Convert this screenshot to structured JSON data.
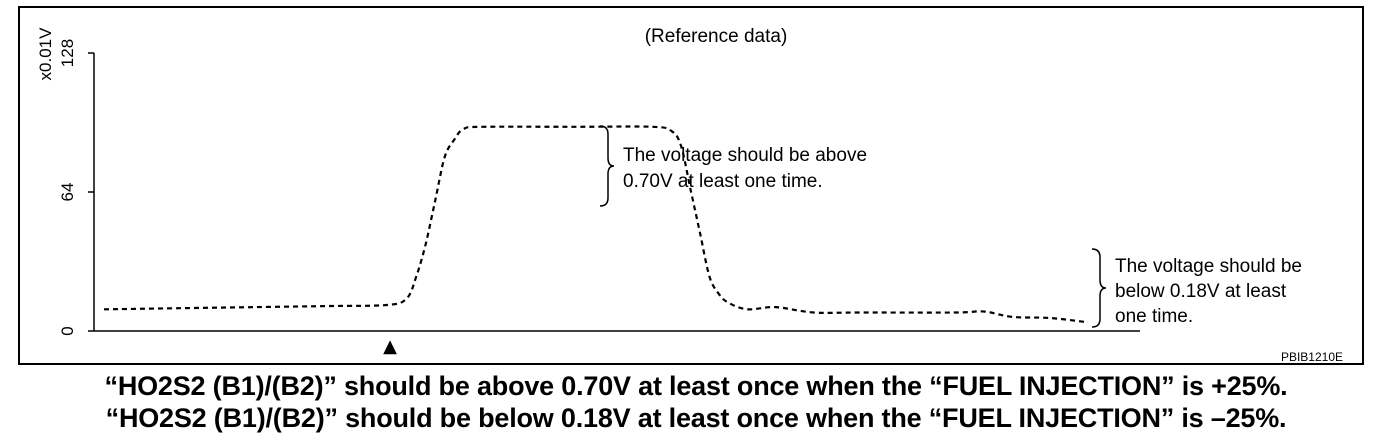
{
  "chart_data": {
    "type": "line",
    "title": "(Reference data)",
    "ylabel": "x0.01V",
    "yticks": [
      0,
      64,
      128
    ],
    "ylim": [
      0,
      128
    ],
    "grid": false,
    "line_style": "dashed",
    "series": [
      {
        "points": [
          [
            0,
            10
          ],
          [
            8,
            10.5
          ],
          [
            16,
            11
          ],
          [
            24,
            11.5
          ],
          [
            30,
            12
          ],
          [
            32,
            15
          ],
          [
            33,
            25
          ],
          [
            34,
            40
          ],
          [
            35,
            60
          ],
          [
            36,
            80
          ],
          [
            37,
            88
          ],
          [
            38,
            93
          ],
          [
            40,
            94
          ],
          [
            50,
            94
          ],
          [
            58,
            94
          ],
          [
            60,
            92
          ],
          [
            61,
            85
          ],
          [
            62,
            65
          ],
          [
            63,
            45
          ],
          [
            64,
            25
          ],
          [
            65,
            17
          ],
          [
            66,
            13
          ],
          [
            68,
            10
          ],
          [
            71,
            11
          ],
          [
            75,
            8.5
          ],
          [
            80,
            8.5
          ],
          [
            90,
            8.5
          ],
          [
            93,
            9
          ],
          [
            96,
            6.5
          ],
          [
            100,
            6
          ],
          [
            104,
            4
          ]
        ]
      }
    ],
    "annotations": [
      "The voltage should be above 0.70V at least one time.",
      "The voltage should be below 0.18V at least one time."
    ],
    "marker": "▲"
  },
  "figure": {
    "code": "PBIB1210E",
    "annotation_upper": [
      "The voltage should be above",
      "0.70V at least one time."
    ],
    "annotation_lower": [
      "The voltage should be",
      "below 0.18V at least",
      "one time."
    ]
  },
  "caption": {
    "line1": "“HO2S2 (B1)/(B2)” should be above 0.70V at least once when the “FUEL INJECTION” is +25%.",
    "line2": "“HO2S2 (B1)/(B2)” should be below 0.18V at least once when the “FUEL INJECTION” is –25%."
  }
}
